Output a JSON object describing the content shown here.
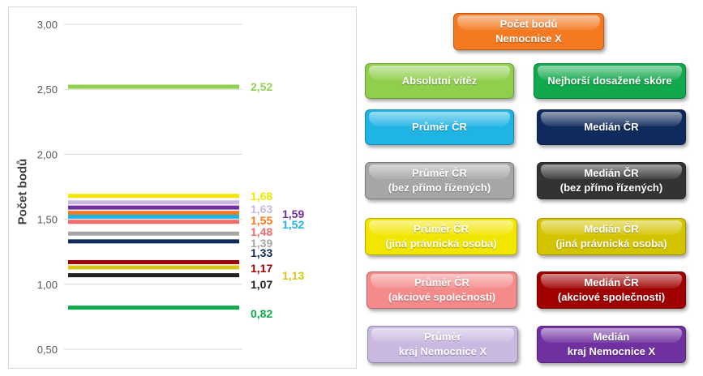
{
  "chart_data": {
    "type": "line",
    "ylabel": "Počet bodů",
    "ylim": [
      0.5,
      3.0
    ],
    "yticks": [
      "0,50",
      "1,00",
      "1,50",
      "2,00",
      "2,50",
      "3,00"
    ],
    "yticks_values": [
      0.5,
      1.0,
      1.5,
      2.0,
      2.5,
      3.0
    ],
    "grid": true,
    "series": [
      {
        "name": "Absolutní vítěz",
        "value": 2.52,
        "label": "2,52",
        "color": "#92d050"
      },
      {
        "name": "Průměr ČR (jiná právnická osoba)",
        "value": 1.68,
        "label": "1,68",
        "color": "#f2e600"
      },
      {
        "name": "Průměr kraj Nemocnice X",
        "value": 1.63,
        "label": "1,63",
        "color": "#c9b8e0"
      },
      {
        "name": "Medián kraj Nemocnice X",
        "value": 1.59,
        "label": "1,59",
        "color": "#7030a0"
      },
      {
        "name": "Počet bodů Nemocnice X",
        "value": 1.55,
        "label": "1,55",
        "color": "#f47920"
      },
      {
        "name": "Průměr ČR",
        "value": 1.52,
        "label": "1,52",
        "color": "#1fb4e4"
      },
      {
        "name": "Průměr ČR (akciové společnosti)",
        "value": 1.48,
        "label": "1,48",
        "color": "#f16b6b"
      },
      {
        "name": "Průměr ČR (bez přímo řízených)",
        "value": 1.39,
        "label": "1,39",
        "color": "#a6a6a6"
      },
      {
        "name": "Medián ČR",
        "value": 1.33,
        "label": "1,33",
        "color": "#0f2a5c"
      },
      {
        "name": "Medián ČR (akciové společnosti)",
        "value": 1.17,
        "label": "1,17",
        "color": "#a00000"
      },
      {
        "name": "Medián ČR (jiná právnická osoba)",
        "value": 1.13,
        "label": "1,13",
        "color": "#d8c51a"
      },
      {
        "name": "Medián ČR (bez přímo řízených)",
        "value": 1.07,
        "label": "1,07",
        "color": "#222222"
      },
      {
        "name": "Nejhorší dosažené skóre",
        "value": 0.82,
        "label": "0,82",
        "color": "#12a84c"
      }
    ]
  },
  "legend": [
    {
      "text": "Počet bodů\nNemocnice X",
      "color": "#f47920"
    },
    {
      "text": "Absolutní vítěz",
      "color": "#8fcf4c"
    },
    {
      "text": "Nejhorší dosažené skóre",
      "color": "#12a84c"
    },
    {
      "text": "Průměr ČR",
      "color": "#1fb4e4"
    },
    {
      "text": "Medián ČR",
      "color": "#0f2a5c"
    },
    {
      "text": "Průměr ČR\n(bez přímo řízených)",
      "color": "#a6a6a6"
    },
    {
      "text": "Medián ČR\n(bez přímo řízených)",
      "color": "#333333"
    },
    {
      "text": "Průměr ČR\n(jiná právnická osoba)",
      "color": "#f2e600"
    },
    {
      "text": "Medián ČR\n(jiná právnická osoba)",
      "color": "#d4c400"
    },
    {
      "text": "Průměr ČR\n(akciové společnosti)",
      "color": "#f58a8a"
    },
    {
      "text": "Medián ČR\n(akciové společnosti)",
      "color": "#a00000"
    },
    {
      "text": "Průměr\nkraj Nemocnice X",
      "color": "#c9b8e0"
    },
    {
      "text": "Medián\nkraj Nemocnice X",
      "color": "#7030a0"
    }
  ]
}
